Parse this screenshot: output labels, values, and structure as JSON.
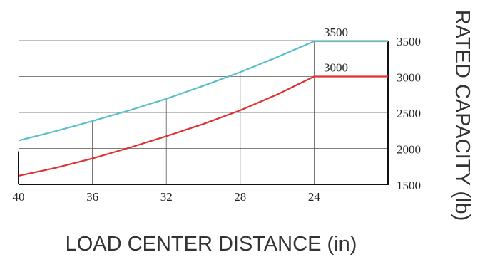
{
  "chart_data": {
    "type": "line",
    "title": "",
    "xlabel": "LOAD CENTER DISTANCE (in)",
    "ylabel": "RATED CAPACITY (lb)",
    "x_axis_reversed": true,
    "y_axis_position": "right",
    "xlim": [
      40,
      20
    ],
    "ylim": [
      1500,
      3500
    ],
    "x_ticks": [
      "40",
      "36",
      "32",
      "28",
      "24"
    ],
    "y_ticks": [
      "3500",
      "3000",
      "2500",
      "2000",
      "1500"
    ],
    "grid": true,
    "series": [
      {
        "name": "3500",
        "color": "#5bbfc6",
        "x": [
          40,
          38,
          36,
          34,
          32,
          30,
          28,
          26,
          24,
          20
        ],
        "y": [
          2110,
          2240,
          2380,
          2530,
          2690,
          2870,
          3060,
          3270,
          3490,
          3490
        ]
      },
      {
        "name": "3000",
        "color": "#e03030",
        "x": [
          40,
          38,
          36,
          34,
          32,
          30,
          28,
          26,
          24,
          20
        ],
        "y": [
          1620,
          1730,
          1860,
          2010,
          2170,
          2340,
          2530,
          2750,
          3000,
          3000
        ]
      }
    ]
  }
}
